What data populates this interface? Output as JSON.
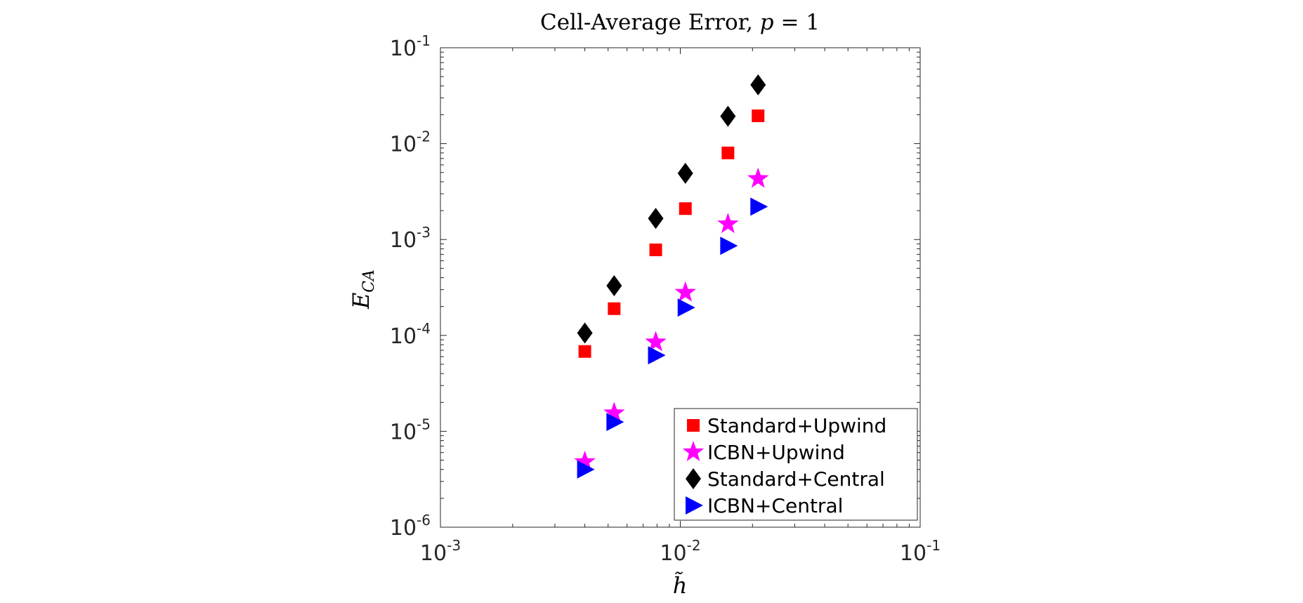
{
  "chart_data": {
    "type": "scatter",
    "title": "Cell-Average Error, p = 1",
    "title_main": "Cell-Average Error, ",
    "title_var": "p",
    "title_eq": " = 1",
    "xlabel": "h̃",
    "ylabel_main": "E",
    "ylabel_sub": "CA",
    "xscale": "log",
    "yscale": "log",
    "xlim": [
      0.001,
      0.1
    ],
    "ylim": [
      1e-06,
      0.1
    ],
    "x_ticks": [
      {
        "value": 0.001,
        "base": "10",
        "exp": "-3"
      },
      {
        "value": 0.01,
        "base": "10",
        "exp": "-2"
      },
      {
        "value": 0.1,
        "base": "10",
        "exp": "-1"
      }
    ],
    "y_ticks": [
      {
        "value": 1e-06,
        "base": "10",
        "exp": "-6"
      },
      {
        "value": 1e-05,
        "base": "10",
        "exp": "-5"
      },
      {
        "value": 0.0001,
        "base": "10",
        "exp": "-4"
      },
      {
        "value": 0.001,
        "base": "10",
        "exp": "-3"
      },
      {
        "value": 0.01,
        "base": "10",
        "exp": "-2"
      },
      {
        "value": 0.1,
        "base": "10",
        "exp": "-1"
      }
    ],
    "legend_position": "bottom-right",
    "grid": false,
    "series": [
      {
        "name": "Standard+Upwind",
        "marker": "square",
        "color": "#ff0000",
        "x": [
          0.004,
          0.0053,
          0.0079,
          0.0105,
          0.0158,
          0.0211
        ],
        "y": [
          6.8e-05,
          0.00019,
          0.00078,
          0.0021,
          0.008,
          0.0195
        ]
      },
      {
        "name": "ICBN+Upwind",
        "marker": "star",
        "color": "#ff00ff",
        "x": [
          0.004,
          0.0053,
          0.0079,
          0.0105,
          0.0158,
          0.0211
        ],
        "y": [
          4.8e-06,
          1.55e-05,
          8.5e-05,
          0.00028,
          0.00145,
          0.0043
        ]
      },
      {
        "name": "Standard+Central",
        "marker": "diamond",
        "color": "#000000",
        "x": [
          0.004,
          0.0053,
          0.0079,
          0.0105,
          0.0158,
          0.0211
        ],
        "y": [
          0.000106,
          0.00033,
          0.00166,
          0.0049,
          0.0193,
          0.041
        ]
      },
      {
        "name": "ICBN+Central",
        "marker": "triangle-right",
        "color": "#0000ff",
        "x": [
          0.004,
          0.0053,
          0.0079,
          0.0105,
          0.0158,
          0.0211
        ],
        "y": [
          4e-06,
          1.25e-05,
          6.2e-05,
          0.000195,
          0.00086,
          0.0022
        ]
      }
    ]
  }
}
